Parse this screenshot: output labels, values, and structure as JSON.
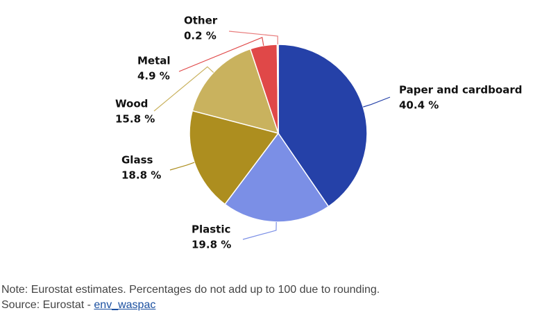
{
  "chart_data": {
    "type": "pie",
    "categories": [
      "Paper and cardboard",
      "Plastic",
      "Glass",
      "Wood",
      "Metal",
      "Other"
    ],
    "values": [
      40.4,
      19.8,
      18.8,
      15.8,
      4.9,
      0.2
    ],
    "value_labels": [
      "40.4 %",
      "19.8 %",
      "18.8 %",
      "15.8 %",
      "4.9 %",
      "0.2 %"
    ],
    "colors": [
      "#2541a8",
      "#7b8fe6",
      "#ad8e1f",
      "#c9b25e",
      "#e04848",
      "#e87b7b"
    ],
    "note": "Note: Eurostat estimates. Percentages do not add up to 100 due to rounding.",
    "source": {
      "text": "Source: Eurostat -",
      "link": "env_waspac"
    }
  }
}
